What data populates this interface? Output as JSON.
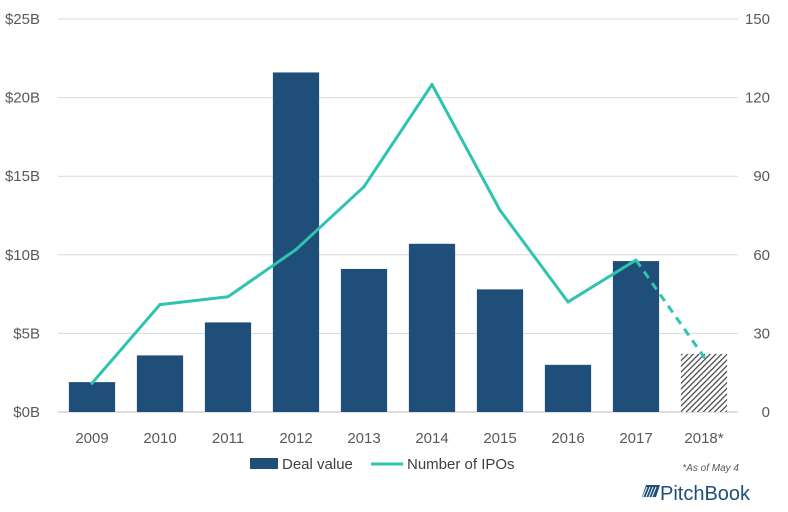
{
  "chart_data": {
    "type": "bar+line",
    "categories": [
      "2009",
      "2010",
      "2011",
      "2012",
      "2013",
      "2014",
      "2015",
      "2016",
      "2017",
      "2018*"
    ],
    "series": [
      {
        "name": "Deal value",
        "type": "bar",
        "axis": "left",
        "unit": "$B",
        "values": [
          1.9,
          3.6,
          5.7,
          21.6,
          9.1,
          10.7,
          7.8,
          3.0,
          9.6,
          3.7
        ],
        "color": "#1f4e79",
        "hatched_categories": [
          "2018*"
        ]
      },
      {
        "name": "Number of IPOs",
        "type": "line",
        "axis": "right",
        "values": [
          11,
          41,
          44,
          62,
          86,
          125,
          77,
          42,
          58,
          21
        ],
        "color": "#2ec4b0",
        "dashed_segment_from": "2017"
      }
    ],
    "left_axis": {
      "ylim": [
        0,
        25
      ],
      "ticks": [
        0,
        5,
        10,
        15,
        20,
        25
      ],
      "tick_labels": [
        "$0B",
        "$5B",
        "$10B",
        "$15B",
        "$20B",
        "$25B"
      ]
    },
    "right_axis": {
      "ylim": [
        0,
        150
      ],
      "ticks": [
        0,
        30,
        60,
        90,
        120,
        150
      ],
      "tick_labels": [
        "0",
        "30",
        "60",
        "90",
        "120",
        "150"
      ]
    },
    "gridlines": true,
    "legend": {
      "position": "bottom-center",
      "entries": [
        "Deal value",
        "Number of IPOs"
      ]
    },
    "footnote": "*As of May 4"
  },
  "branding": {
    "logo_text": "PitchBook"
  }
}
